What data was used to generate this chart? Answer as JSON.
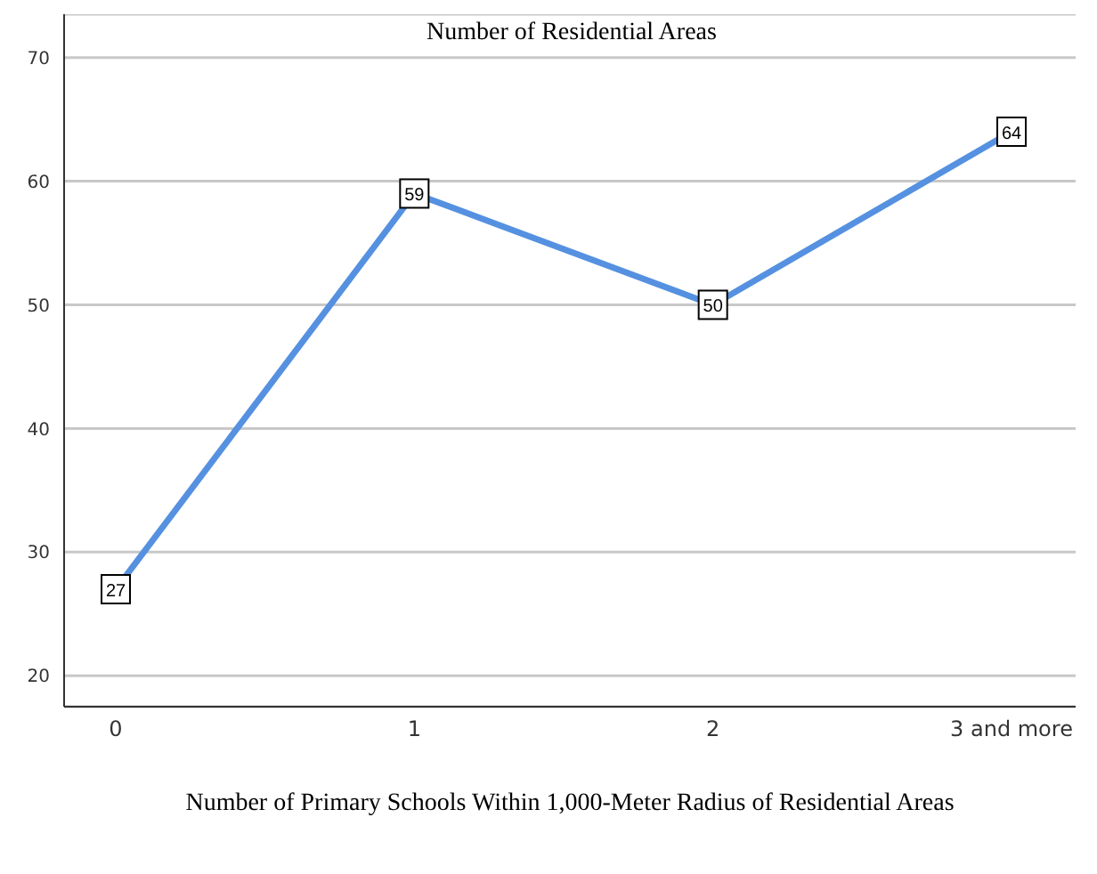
{
  "chart_data": {
    "type": "line",
    "title": "Number of Residential Areas",
    "xlabel": "Number of Primary Schools Within 1,000-Meter Radius of Residential Areas",
    "categories": [
      "0",
      "1",
      "2",
      "3 and more"
    ],
    "series": [
      {
        "color": "#5591e0",
        "values": [
          27,
          59,
          50,
          64
        ]
      }
    ],
    "ylim": [
      17.5,
      73.5
    ],
    "yticks": [
      20,
      30,
      40,
      50,
      60,
      70
    ],
    "grid": "y",
    "legend": false,
    "marker": "square",
    "line_style": "solid",
    "data_labels": true
  }
}
